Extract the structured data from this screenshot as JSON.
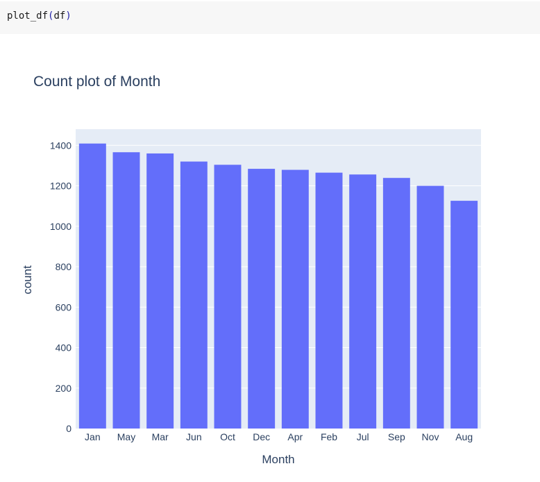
{
  "code_cell": {
    "func": "plot_df",
    "open_paren": "(",
    "arg": "df",
    "close_paren": ")"
  },
  "colors": {
    "bar": "#636efa",
    "plot_bg": "#e5ecf6",
    "grid": "#ffffff",
    "text": "#2a3f5f"
  },
  "chart_data": {
    "type": "bar",
    "title": "Count plot of Month",
    "xlabel": "Month",
    "ylabel": "count",
    "categories": [
      "Jan",
      "May",
      "Mar",
      "Jun",
      "Oct",
      "Dec",
      "Apr",
      "Feb",
      "Jul",
      "Sep",
      "Nov",
      "Aug"
    ],
    "values": [
      1409,
      1366,
      1360,
      1320,
      1304,
      1284,
      1279,
      1265,
      1256,
      1239,
      1200,
      1126
    ],
    "ylim": [
      0,
      1480
    ],
    "yticks": [
      0,
      200,
      400,
      600,
      800,
      1000,
      1200,
      1400
    ],
    "grid": true,
    "legend": "none"
  }
}
